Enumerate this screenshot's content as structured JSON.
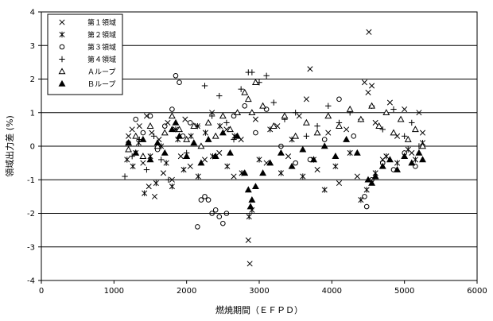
{
  "chart_data": {
    "type": "scatter",
    "title": "",
    "xlabel": "燃焼期間（ＥＦＰＤ）",
    "ylabel": "領域出力差 (%)",
    "xlim": [
      0,
      6000
    ],
    "ylim": [
      -4,
      4
    ],
    "xticks": [
      0,
      1000,
      2000,
      3000,
      4000,
      5000,
      6000
    ],
    "yticks": [
      4,
      3,
      2,
      1,
      0,
      -1,
      -2,
      -3,
      -4
    ],
    "grid": "horizontal",
    "legend_position": "top-left",
    "series": [
      {
        "name": "第１領域",
        "marker": "x",
        "points": [
          [
            1200,
            0.3
          ],
          [
            1250,
            0.5
          ],
          [
            1300,
            -0.2
          ],
          [
            1350,
            0.6
          ],
          [
            1400,
            -0.5
          ],
          [
            1450,
            0.9
          ],
          [
            1480,
            -1.2
          ],
          [
            1520,
            0.4
          ],
          [
            1560,
            -1.5
          ],
          [
            1620,
            0.2
          ],
          [
            1680,
            -0.8
          ],
          [
            1740,
            0.7
          ],
          [
            1800,
            -1.0
          ],
          [
            1850,
            0.5
          ],
          [
            1920,
            -0.3
          ],
          [
            1980,
            0.8
          ],
          [
            2050,
            -0.6
          ],
          [
            2150,
            0.6
          ],
          [
            2250,
            -0.4
          ],
          [
            2350,
            1.0
          ],
          [
            2450,
            -0.2
          ],
          [
            2550,
            0.5
          ],
          [
            2650,
            -0.9
          ],
          [
            2750,
            0.2
          ],
          [
            2850,
            -2.8
          ],
          [
            2870,
            -3.5
          ],
          [
            2950,
            0.8
          ],
          [
            3100,
            -0.5
          ],
          [
            3250,
            0.6
          ],
          [
            3400,
            -0.3
          ],
          [
            3550,
            0.9
          ],
          [
            3650,
            1.4
          ],
          [
            3700,
            2.3
          ],
          [
            3800,
            -0.7
          ],
          [
            3950,
            0.4
          ],
          [
            4100,
            -1.1
          ],
          [
            4200,
            0.5
          ],
          [
            4350,
            -0.9
          ],
          [
            4450,
            1.9
          ],
          [
            4500,
            1.6
          ],
          [
            4550,
            1.8
          ],
          [
            4600,
            0.7
          ],
          [
            4700,
            -0.4
          ],
          [
            4800,
            1.3
          ],
          [
            4900,
            0.3
          ],
          [
            5000,
            1.1
          ],
          [
            5100,
            -0.2
          ],
          [
            5200,
            1.0
          ],
          [
            5250,
            0.4
          ],
          [
            4510,
            3.4
          ]
        ]
      },
      {
        "name": "第２領域",
        "marker": "asterisk",
        "points": [
          [
            1180,
            -0.4
          ],
          [
            1260,
            -0.6
          ],
          [
            1340,
            0.1
          ],
          [
            1420,
            -1.4
          ],
          [
            1500,
            -0.3
          ],
          [
            1580,
            -1.1
          ],
          [
            1650,
            0.0
          ],
          [
            1720,
            -0.5
          ],
          [
            1800,
            -1.2
          ],
          [
            1880,
            0.2
          ],
          [
            1960,
            -0.7
          ],
          [
            2060,
            0.3
          ],
          [
            2160,
            -0.9
          ],
          [
            2260,
            0.4
          ],
          [
            2360,
            -0.3
          ],
          [
            2460,
            0.6
          ],
          [
            2560,
            -0.6
          ],
          [
            2660,
            0.3
          ],
          [
            2760,
            -0.8
          ],
          [
            2860,
            -2.1
          ],
          [
            2900,
            -1.9
          ],
          [
            3000,
            -0.4
          ],
          [
            3150,
            0.5
          ],
          [
            3300,
            -0.8
          ],
          [
            3450,
            0.2
          ],
          [
            3600,
            -0.9
          ],
          [
            3750,
            -0.4
          ],
          [
            3900,
            -1.3
          ],
          [
            4050,
            -0.6
          ],
          [
            4250,
            -0.2
          ],
          [
            4400,
            -1.6
          ],
          [
            4480,
            -1.3
          ],
          [
            4600,
            -0.8
          ],
          [
            4750,
            -0.3
          ],
          [
            4900,
            -0.5
          ],
          [
            5050,
            -0.1
          ],
          [
            5150,
            -0.4
          ],
          [
            5250,
            0.1
          ]
        ]
      },
      {
        "name": "第３領域",
        "marker": "circle",
        "points": [
          [
            1200,
            0.1
          ],
          [
            1300,
            0.8
          ],
          [
            1400,
            0.4
          ],
          [
            1500,
            0.9
          ],
          [
            1600,
            -0.1
          ],
          [
            1700,
            0.6
          ],
          [
            1800,
            1.1
          ],
          [
            1850,
            2.1
          ],
          [
            1900,
            1.9
          ],
          [
            1950,
            0.3
          ],
          [
            2050,
            0.7
          ],
          [
            2150,
            -2.4
          ],
          [
            2200,
            -1.6
          ],
          [
            2250,
            -1.5
          ],
          [
            2300,
            -1.6
          ],
          [
            2350,
            -2.0
          ],
          [
            2400,
            -1.9
          ],
          [
            2450,
            -2.1
          ],
          [
            2500,
            -2.3
          ],
          [
            2550,
            -2.0
          ],
          [
            2650,
            0.9
          ],
          [
            2800,
            1.2
          ],
          [
            2950,
            0.4
          ],
          [
            3100,
            1.1
          ],
          [
            3300,
            0.0
          ],
          [
            3500,
            -0.5
          ],
          [
            3700,
            -0.4
          ],
          [
            3900,
            0.2
          ],
          [
            4100,
            1.4
          ],
          [
            4300,
            0.3
          ],
          [
            4450,
            -1.5
          ],
          [
            4480,
            -1.8
          ],
          [
            4550,
            -1.0
          ],
          [
            4700,
            -0.5
          ],
          [
            4850,
            -0.7
          ],
          [
            5000,
            -0.2
          ],
          [
            5150,
            -0.6
          ]
        ]
      },
      {
        "name": "第４領域",
        "marker": "plus",
        "points": [
          [
            1150,
            -0.9
          ],
          [
            1250,
            -0.3
          ],
          [
            1350,
            0.2
          ],
          [
            1450,
            -0.7
          ],
          [
            1550,
            0.3
          ],
          [
            1650,
            -0.4
          ],
          [
            1750,
            -1.0
          ],
          [
            1850,
            0.5
          ],
          [
            2000,
            -0.2
          ],
          [
            2150,
            0.6
          ],
          [
            2250,
            1.8
          ],
          [
            2350,
            0.9
          ],
          [
            2450,
            1.5
          ],
          [
            2550,
            0.7
          ],
          [
            2650,
            0.2
          ],
          [
            2750,
            1.7
          ],
          [
            2850,
            2.2
          ],
          [
            2900,
            2.2
          ],
          [
            3000,
            1.9
          ],
          [
            3100,
            2.1
          ],
          [
            3200,
            1.3
          ],
          [
            3350,
            0.8
          ],
          [
            3500,
            1.0
          ],
          [
            3650,
            0.3
          ],
          [
            3800,
            0.6
          ],
          [
            3950,
            1.2
          ],
          [
            4100,
            0.7
          ],
          [
            4250,
            1.0
          ],
          [
            4400,
            0.8
          ],
          [
            4550,
            1.2
          ],
          [
            4700,
            0.5
          ],
          [
            4850,
            1.1
          ],
          [
            5000,
            0.3
          ],
          [
            5100,
            0.7
          ],
          [
            5200,
            0.0
          ]
        ]
      },
      {
        "name": "Ａループ",
        "marker": "triangle-open",
        "points": [
          [
            1200,
            -0.1
          ],
          [
            1300,
            0.3
          ],
          [
            1400,
            -0.3
          ],
          [
            1500,
            0.6
          ],
          [
            1600,
            0.0
          ],
          [
            1700,
            0.4
          ],
          [
            1800,
            0.9
          ],
          [
            1900,
            0.5
          ],
          [
            2000,
            0.2
          ],
          [
            2100,
            0.6
          ],
          [
            2200,
            0.0
          ],
          [
            2300,
            0.7
          ],
          [
            2400,
            0.3
          ],
          [
            2500,
            0.9
          ],
          [
            2600,
            0.5
          ],
          [
            2700,
            1.0
          ],
          [
            2800,
            1.6
          ],
          [
            2850,
            1.4
          ],
          [
            2900,
            1.0
          ],
          [
            2950,
            1.9
          ],
          [
            3050,
            1.2
          ],
          [
            3200,
            0.6
          ],
          [
            3350,
            0.9
          ],
          [
            3500,
            0.3
          ],
          [
            3650,
            0.7
          ],
          [
            3800,
            0.4
          ],
          [
            3950,
            0.9
          ],
          [
            4100,
            0.6
          ],
          [
            4250,
            1.1
          ],
          [
            4400,
            0.8
          ],
          [
            4550,
            1.2
          ],
          [
            4650,
            0.6
          ],
          [
            4750,
            1.0
          ],
          [
            4850,
            0.4
          ],
          [
            4950,
            0.8
          ],
          [
            5050,
            0.2
          ],
          [
            5150,
            0.5
          ],
          [
            5250,
            0.0
          ]
        ]
      },
      {
        "name": "Ｂループ",
        "marker": "triangle-filled",
        "points": [
          [
            1200,
            0.1
          ],
          [
            1300,
            -0.2
          ],
          [
            1400,
            0.2
          ],
          [
            1500,
            -0.4
          ],
          [
            1600,
            0.1
          ],
          [
            1700,
            -0.2
          ],
          [
            1800,
            0.5
          ],
          [
            1850,
            0.7
          ],
          [
            1900,
            0.3
          ],
          [
            2000,
            -0.3
          ],
          [
            2100,
            0.1
          ],
          [
            2200,
            -0.5
          ],
          [
            2300,
            0.2
          ],
          [
            2400,
            -0.3
          ],
          [
            2500,
            0.4
          ],
          [
            2600,
            -0.2
          ],
          [
            2700,
            0.3
          ],
          [
            2800,
            -0.8
          ],
          [
            2850,
            -1.3
          ],
          [
            2880,
            -1.8
          ],
          [
            2900,
            -1.6
          ],
          [
            2950,
            -1.2
          ],
          [
            3050,
            -0.8
          ],
          [
            3150,
            -0.5
          ],
          [
            3300,
            -0.2
          ],
          [
            3450,
            -0.6
          ],
          [
            3600,
            -0.1
          ],
          [
            3750,
            -0.4
          ],
          [
            3900,
            0.0
          ],
          [
            4050,
            -0.3
          ],
          [
            4200,
            0.2
          ],
          [
            4350,
            -0.2
          ],
          [
            4500,
            -1.0
          ],
          [
            4550,
            -1.1
          ],
          [
            4600,
            -0.9
          ],
          [
            4700,
            -0.6
          ],
          [
            4800,
            -0.4
          ],
          [
            4900,
            -0.7
          ],
          [
            5000,
            -0.3
          ],
          [
            5100,
            -0.5
          ],
          [
            5200,
            -0.2
          ],
          [
            5250,
            -0.4
          ]
        ]
      }
    ]
  }
}
